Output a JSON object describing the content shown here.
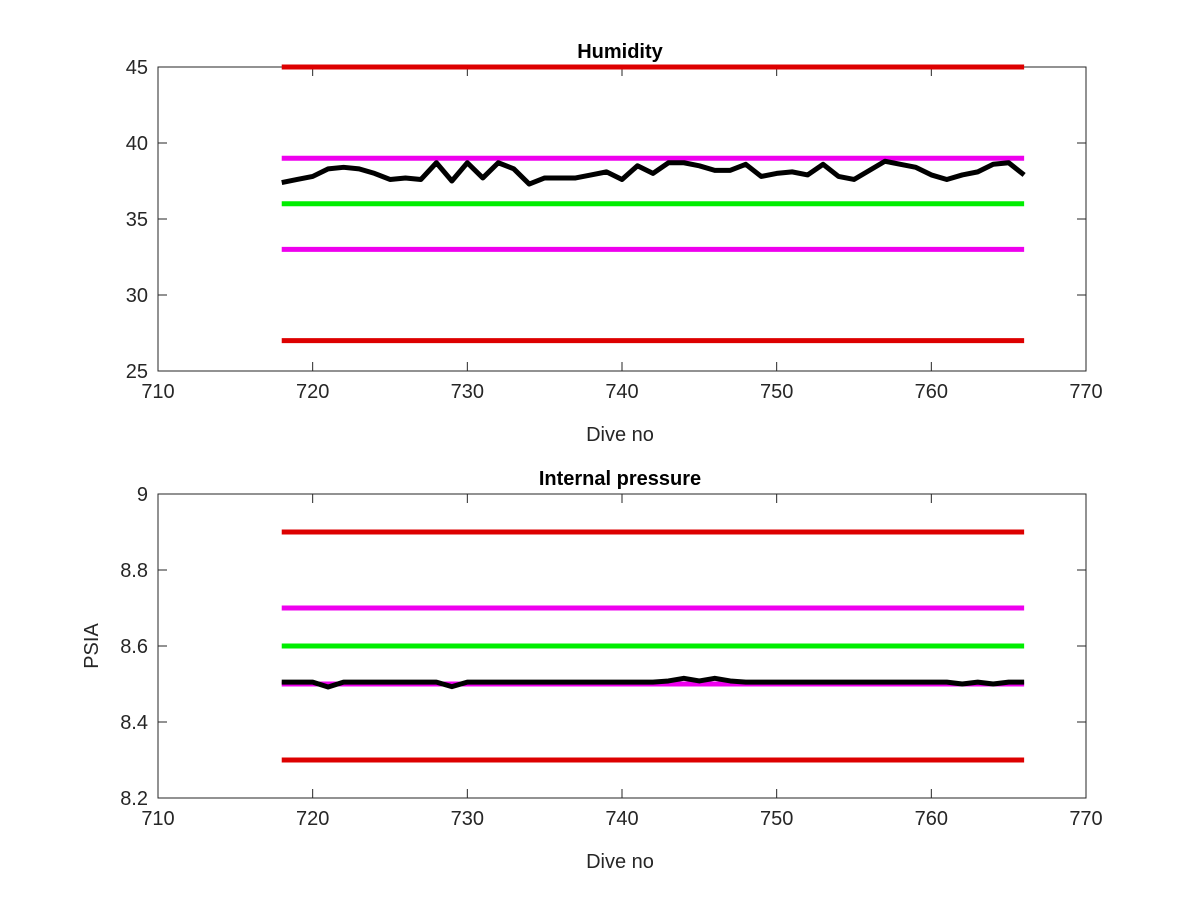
{
  "chart_data": [
    {
      "type": "line",
      "title": "Humidity",
      "xlabel": "Dive no",
      "ylabel": "",
      "xlim": [
        710,
        770
      ],
      "ylim": [
        25,
        45
      ],
      "xticks": [
        710,
        720,
        730,
        740,
        750,
        760,
        770
      ],
      "yticks": [
        25,
        30,
        35,
        40,
        45
      ],
      "grid": false,
      "legend": "none",
      "series": [
        {
          "color": "#dd0000",
          "x": [
            718,
            766
          ],
          "y": [
            45,
            45
          ]
        },
        {
          "color": "#ee00ee",
          "x": [
            718,
            766
          ],
          "y": [
            39,
            39
          ]
        },
        {
          "color": "#00ee00",
          "x": [
            718,
            766
          ],
          "y": [
            36,
            36
          ]
        },
        {
          "color": "#ee00ee",
          "x": [
            718,
            766
          ],
          "y": [
            33,
            33
          ]
        },
        {
          "color": "#dd0000",
          "x": [
            718,
            766
          ],
          "y": [
            27,
            27
          ]
        },
        {
          "color": "#000000",
          "x": [
            718,
            719,
            720,
            721,
            722,
            723,
            724,
            725,
            726,
            727,
            728,
            729,
            730,
            731,
            732,
            733,
            734,
            735,
            736,
            737,
            738,
            739,
            740,
            741,
            742,
            743,
            744,
            745,
            746,
            747,
            748,
            749,
            750,
            751,
            752,
            753,
            754,
            755,
            756,
            757,
            758,
            759,
            760,
            761,
            762,
            763,
            764,
            765,
            766
          ],
          "y": [
            37.4,
            37.6,
            37.8,
            38.3,
            38.4,
            38.3,
            38.0,
            37.6,
            37.7,
            37.6,
            38.7,
            37.5,
            38.7,
            37.7,
            38.7,
            38.3,
            37.3,
            37.7,
            37.7,
            37.7,
            37.9,
            38.1,
            37.6,
            38.5,
            38.0,
            38.7,
            38.7,
            38.5,
            38.2,
            38.2,
            38.6,
            37.8,
            38.0,
            38.1,
            37.9,
            38.6,
            37.8,
            37.6,
            38.2,
            38.8,
            38.6,
            38.4,
            37.9,
            37.6,
            37.9,
            38.1,
            38.6,
            38.7,
            37.9
          ]
        }
      ]
    },
    {
      "type": "line",
      "title": "Internal pressure",
      "xlabel": "Dive no",
      "ylabel": "PSIA",
      "xlim": [
        710,
        770
      ],
      "ylim": [
        8.2,
        9
      ],
      "xticks": [
        710,
        720,
        730,
        740,
        750,
        760,
        770
      ],
      "yticks": [
        8.2,
        8.4,
        8.6,
        8.8,
        9
      ],
      "grid": false,
      "legend": "none",
      "series": [
        {
          "color": "#dd0000",
          "x": [
            718,
            766
          ],
          "y": [
            8.9,
            8.9
          ]
        },
        {
          "color": "#ee00ee",
          "x": [
            718,
            766
          ],
          "y": [
            8.7,
            8.7
          ]
        },
        {
          "color": "#00ee00",
          "x": [
            718,
            766
          ],
          "y": [
            8.6,
            8.6
          ]
        },
        {
          "color": "#ee00ee",
          "x": [
            718,
            766
          ],
          "y": [
            8.5,
            8.5
          ]
        },
        {
          "color": "#dd0000",
          "x": [
            718,
            766
          ],
          "y": [
            8.3,
            8.3
          ]
        },
        {
          "color": "#000000",
          "x": [
            718,
            719,
            720,
            721,
            722,
            723,
            724,
            725,
            726,
            727,
            728,
            729,
            730,
            731,
            732,
            733,
            734,
            735,
            736,
            737,
            738,
            739,
            740,
            741,
            742,
            743,
            744,
            745,
            746,
            747,
            748,
            749,
            750,
            751,
            752,
            753,
            754,
            755,
            756,
            757,
            758,
            759,
            760,
            761,
            762,
            763,
            764,
            765,
            766
          ],
          "y": [
            8.505,
            8.505,
            8.505,
            8.492,
            8.505,
            8.505,
            8.505,
            8.505,
            8.505,
            8.505,
            8.505,
            8.493,
            8.505,
            8.505,
            8.505,
            8.505,
            8.505,
            8.505,
            8.505,
            8.505,
            8.505,
            8.505,
            8.505,
            8.505,
            8.505,
            8.508,
            8.515,
            8.508,
            8.515,
            8.508,
            8.505,
            8.505,
            8.505,
            8.505,
            8.505,
            8.505,
            8.505,
            8.505,
            8.505,
            8.505,
            8.505,
            8.505,
            8.505,
            8.505,
            8.5,
            8.505,
            8.5,
            8.505,
            8.505
          ]
        }
      ]
    }
  ]
}
